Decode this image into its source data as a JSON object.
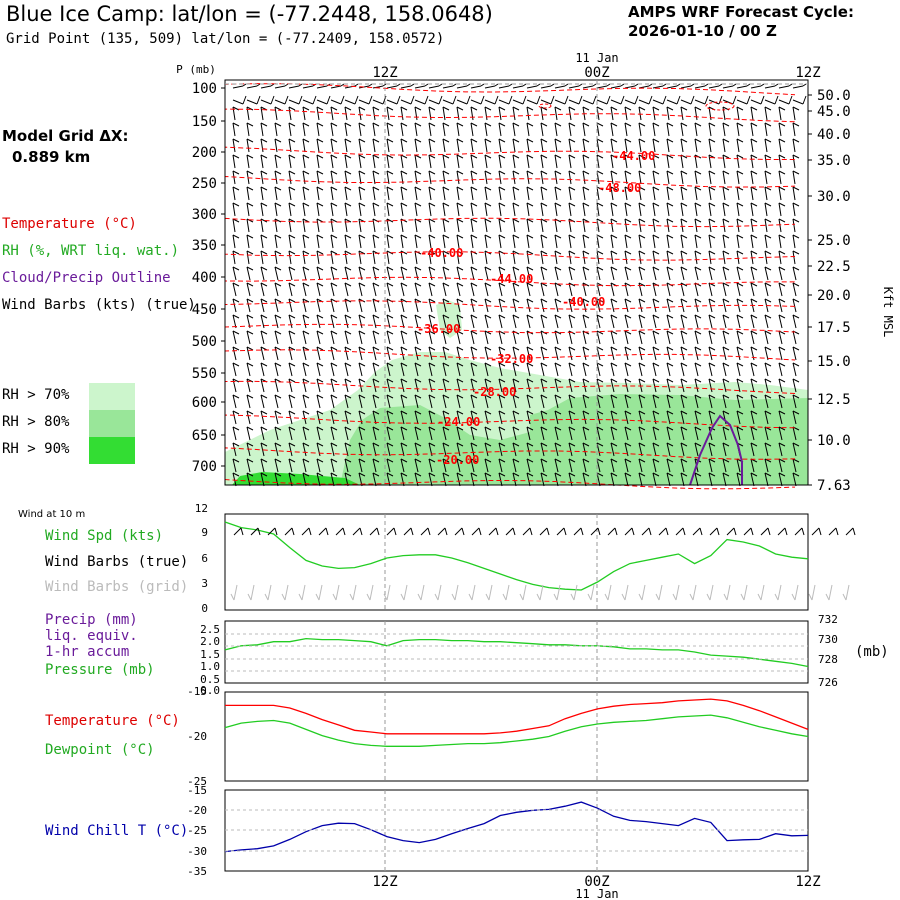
{
  "header": {
    "title": "Blue Ice Camp:  lat/lon = (-77.2448, 158.0648)",
    "grid_point": "Grid Point (135, 509) lat/lon = (-77.2409, 158.0572)",
    "cycle_line1": "AMPS WRF Forecast Cycle:",
    "cycle_line2": "2026-01-10 / 00  Z",
    "grid_dx_line1": "Model Grid ΔX:",
    "grid_dx_line2": "0.889 km"
  },
  "colors": {
    "temperature": "#ff0000",
    "rh": "#22cc22",
    "cloud": "#6a1b9a",
    "wind": "#000000",
    "wind_grid": "#bbbbbb",
    "windchill": "#0000aa",
    "rh70": "#ccf5cc",
    "rh80": "#99e699",
    "rh90": "#33dd33"
  },
  "time_axis": {
    "top_labels": [
      "12Z",
      "00Z",
      "12Z"
    ],
    "date_label": "11 Jan",
    "bottom_labels": [
      "12Z",
      "00Z",
      "12Z"
    ]
  },
  "cross_section": {
    "ylabel": "P (mb)",
    "right_label": "Kft MSL",
    "pressure_ticks": [
      "100",
      "150",
      "200",
      "250",
      "300",
      "350",
      "400",
      "450",
      "500",
      "550",
      "600",
      "650",
      "700"
    ],
    "kft_ticks": [
      "50.0",
      "45.0",
      "40.0",
      "35.0",
      "30.0",
      "25.0",
      "22.5",
      "20.0",
      "17.5",
      "15.0",
      "12.5",
      "10.0",
      "7.63"
    ],
    "legend": {
      "temperature": "Temperature (°C)",
      "rh": "RH (%, WRT liq. wat.)",
      "cloud": "Cloud/Precip Outline",
      "wind": "Wind Barbs (kts) (true)"
    },
    "rh_legend": [
      "RH > 70%",
      "RH > 80%",
      "RH > 90%"
    ],
    "contour_labels": [
      "-44.00",
      "-48.00",
      "-40.00",
      "-44.00",
      "-40.00",
      "-36.00",
      "-32.00",
      "-28.00",
      "-24.00",
      "-20.00"
    ]
  },
  "wind_panel": {
    "header": "Wind at 10 m",
    "spd_label": "Wind Spd (kts)",
    "barb_true_label": "Wind Barbs (true)",
    "barb_grid_label": "Wind Barbs (grid)",
    "yticks": [
      "12",
      "9",
      "6",
      "3",
      "0"
    ]
  },
  "precip_panel": {
    "precip_label_1": "Precip (mm)",
    "precip_label_2": "liq. equiv.",
    "precip_label_3": "1-hr accum",
    "pressure_label": "Pressure (mb)",
    "left_ticks": [
      "2.5",
      "2.0",
      "1.5",
      "1.0",
      "0.5",
      "0.0"
    ],
    "right_ticks": [
      "732",
      "730",
      "728",
      "726"
    ],
    "right_unit": "(mb)"
  },
  "temp_panel": {
    "temp_label": "Temperature (°C)",
    "dew_label": "Dewpoint (°C)",
    "yticks": [
      "-15",
      "-20",
      "-25"
    ]
  },
  "chill_panel": {
    "label": "Wind Chill T (°C)",
    "yticks": [
      "-15",
      "-20",
      "-25",
      "-30",
      "-35"
    ]
  },
  "chart_data": [
    {
      "type": "line",
      "title": "Wind at 10 m",
      "ylabel": "Wind Spd (kts)",
      "x": [
        0,
        1,
        2,
        3,
        4,
        5,
        6,
        7,
        8,
        9,
        10,
        11,
        12,
        13,
        14,
        15,
        16,
        17,
        18,
        19,
        20,
        21,
        22,
        23,
        24,
        25,
        26,
        27,
        28,
        29,
        30,
        31,
        32,
        33,
        34,
        35,
        36
      ],
      "series": [
        {
          "name": "Wind Spd (kts)",
          "values": [
            11,
            10.3,
            10,
            9.5,
            7.8,
            6.2,
            5.5,
            5.2,
            5.3,
            5.8,
            6.5,
            6.8,
            6.9,
            6.9,
            6.5,
            5.9,
            5.2,
            4.5,
            3.8,
            3.2,
            2.8,
            2.6,
            2.5,
            3.5,
            4.8,
            5.8,
            6.2,
            6.6,
            7,
            5.8,
            6.8,
            8.8,
            8.5,
            8,
            7,
            6.6,
            6.4
          ]
        }
      ],
      "ylim": [
        0,
        12
      ]
    },
    {
      "type": "line",
      "title": "Pressure",
      "ylabel": "Pressure (mb)",
      "x": [
        0,
        1,
        2,
        3,
        4,
        5,
        6,
        7,
        8,
        9,
        10,
        11,
        12,
        13,
        14,
        15,
        16,
        17,
        18,
        19,
        20,
        21,
        22,
        23,
        24,
        25,
        26,
        27,
        28,
        29,
        30,
        31,
        32,
        33,
        34,
        35,
        36
      ],
      "series": [
        {
          "name": "Pressure (mb)",
          "values": [
            729.2,
            729.6,
            729.7,
            730,
            730,
            730.3,
            730.2,
            730.2,
            730.1,
            730,
            729.6,
            730.1,
            730.2,
            730.2,
            730.1,
            730.1,
            730,
            730,
            729.9,
            729.8,
            729.7,
            729.7,
            729.6,
            729.6,
            729.5,
            729.3,
            729.3,
            729.2,
            729.2,
            729,
            728.7,
            728.6,
            728.5,
            728.3,
            728.1,
            727.9,
            727.6
          ]
        }
      ],
      "ylim": [
        726,
        732
      ]
    },
    {
      "type": "line",
      "title": "Temperature / Dewpoint",
      "x": [
        0,
        1,
        2,
        3,
        4,
        5,
        6,
        7,
        8,
        9,
        10,
        11,
        12,
        13,
        14,
        15,
        16,
        17,
        18,
        19,
        20,
        21,
        22,
        23,
        24,
        25,
        26,
        27,
        28,
        29,
        30,
        31,
        32,
        33,
        34,
        35,
        36
      ],
      "series": [
        {
          "name": "Temperature (°C)",
          "values": [
            -16.5,
            -16.5,
            -16.5,
            -16.5,
            -16.8,
            -17.4,
            -18.1,
            -18.7,
            -19.3,
            -19.5,
            -19.7,
            -19.7,
            -19.7,
            -19.7,
            -19.7,
            -19.7,
            -19.7,
            -19.6,
            -19.4,
            -19.1,
            -18.8,
            -18.0,
            -17.4,
            -16.9,
            -16.6,
            -16.4,
            -16.3,
            -16.2,
            -16.0,
            -15.9,
            -15.8,
            -16.0,
            -16.5,
            -17.1,
            -17.8,
            -18.5,
            -19.2
          ]
        },
        {
          "name": "Dewpoint (°C)",
          "values": [
            -19.0,
            -18.5,
            -18.3,
            -18.2,
            -18.5,
            -19.2,
            -19.9,
            -20.4,
            -20.8,
            -21.0,
            -21.1,
            -21.1,
            -21.1,
            -21.0,
            -20.9,
            -20.8,
            -20.8,
            -20.7,
            -20.5,
            -20.3,
            -20.0,
            -19.4,
            -18.9,
            -18.6,
            -18.4,
            -18.3,
            -18.2,
            -18.0,
            -17.8,
            -17.7,
            -17.6,
            -17.9,
            -18.4,
            -18.9,
            -19.3,
            -19.7,
            -20.0
          ]
        }
      ],
      "ylim": [
        -25,
        -15
      ]
    },
    {
      "type": "line",
      "title": "Wind Chill",
      "ylabel": "Wind Chill T (°C)",
      "x": [
        0,
        1,
        2,
        3,
        4,
        5,
        6,
        7,
        8,
        9,
        10,
        11,
        12,
        13,
        14,
        15,
        16,
        17,
        18,
        19,
        20,
        21,
        22,
        23,
        24,
        25,
        26,
        27,
        28,
        29,
        30,
        31,
        32,
        33,
        34,
        35,
        36
      ],
      "series": [
        {
          "name": "Wind Chill T (°C)",
          "values": [
            -30.2,
            -29.8,
            -29.5,
            -28.8,
            -27.2,
            -25.3,
            -23.8,
            -23.2,
            -23.3,
            -24.8,
            -26.5,
            -27.5,
            -28.0,
            -27.2,
            -25.8,
            -24.5,
            -23.3,
            -21.3,
            -20.5,
            -20.0,
            -19.8,
            -19.0,
            -18.0,
            -19.5,
            -21.5,
            -22.5,
            -22.8,
            -23.3,
            -23.8,
            -22.0,
            -23.0,
            -27.5,
            -27.3,
            -27.2,
            -25.8,
            -26.3,
            -26.2
          ]
        }
      ],
      "ylim": [
        -35,
        -15
      ]
    }
  ]
}
